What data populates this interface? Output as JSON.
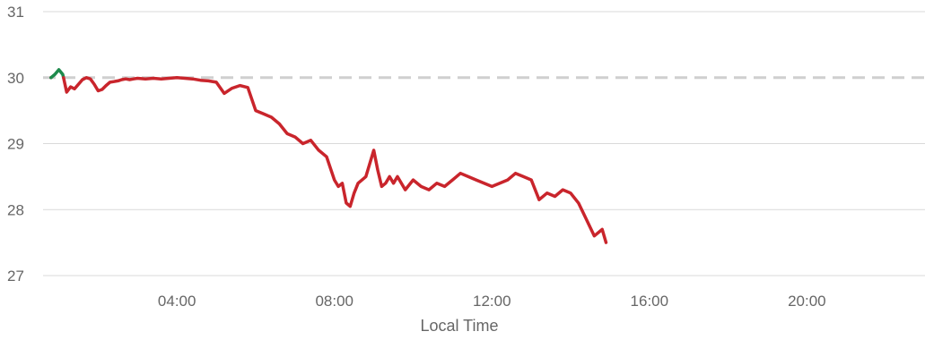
{
  "chart_data": {
    "type": "area",
    "title": "",
    "xlabel": "Local Time",
    "ylabel": "",
    "xlim": [
      0.6,
      23.0
    ],
    "ylim": [
      27,
      31
    ],
    "grid": true,
    "x_ticks": [
      {
        "value": 4,
        "label": "04:00"
      },
      {
        "value": 8,
        "label": "08:00"
      },
      {
        "value": 12,
        "label": "12:00"
      },
      {
        "value": 16,
        "label": "16:00"
      },
      {
        "value": 20,
        "label": "20:00"
      }
    ],
    "y_ticks": [
      {
        "value": 27,
        "label": "27"
      },
      {
        "value": 28,
        "label": "28"
      },
      {
        "value": 29,
        "label": "29"
      },
      {
        "value": 30,
        "label": "30"
      },
      {
        "value": 31,
        "label": "31"
      }
    ],
    "baseline": 30.0,
    "above_color": "#1e8a4c",
    "below_color": "#c9252c",
    "baseline_color": "#cfcfcf",
    "series": [
      {
        "x": [
          0.8,
          0.9,
          1.0,
          1.1,
          1.2,
          1.3,
          1.4,
          1.5,
          1.6,
          1.7,
          1.8,
          1.9,
          2.0,
          2.1,
          2.2,
          2.3,
          2.4,
          2.5,
          2.6,
          2.7,
          2.8,
          2.9,
          3.0,
          3.2,
          3.4,
          3.6,
          3.8,
          4.0,
          4.2,
          4.4,
          4.6,
          4.8,
          5.0,
          5.2,
          5.4,
          5.6,
          5.8,
          6.0,
          6.2,
          6.4,
          6.6,
          6.8,
          7.0,
          7.2,
          7.4,
          7.6,
          7.8,
          8.0,
          8.1,
          8.2,
          8.3,
          8.4,
          8.5,
          8.6,
          8.8,
          9.0,
          9.1,
          9.2,
          9.3,
          9.4,
          9.5,
          9.6,
          9.8,
          10.0,
          10.2,
          10.4,
          10.6,
          10.8,
          11.0,
          11.2,
          11.4,
          11.6,
          11.8,
          12.0,
          12.2,
          12.4,
          12.6,
          12.8,
          13.0,
          13.2,
          13.4,
          13.6,
          13.8,
          14.0,
          14.2,
          14.4,
          14.6,
          14.8,
          14.9
        ],
        "values": [
          30.0,
          30.05,
          30.12,
          30.05,
          29.78,
          29.86,
          29.83,
          29.9,
          29.97,
          30.0,
          29.98,
          29.9,
          29.8,
          29.82,
          29.88,
          29.93,
          29.94,
          29.95,
          29.97,
          29.98,
          29.97,
          29.98,
          29.99,
          29.98,
          29.99,
          29.98,
          29.99,
          30.0,
          29.99,
          29.98,
          29.96,
          29.95,
          29.93,
          29.76,
          29.84,
          29.88,
          29.85,
          29.5,
          29.45,
          29.4,
          29.3,
          29.15,
          29.1,
          29.0,
          29.05,
          28.9,
          28.8,
          28.45,
          28.35,
          28.4,
          28.1,
          28.05,
          28.25,
          28.4,
          28.5,
          28.9,
          28.6,
          28.35,
          28.4,
          28.5,
          28.4,
          28.5,
          28.3,
          28.45,
          28.35,
          28.3,
          28.4,
          28.35,
          28.45,
          28.55,
          28.5,
          28.45,
          28.4,
          28.35,
          28.4,
          28.45,
          28.55,
          28.5,
          28.45,
          28.15,
          28.25,
          28.2,
          28.3,
          28.25,
          28.1,
          27.85,
          27.6,
          27.7,
          27.5
        ]
      }
    ]
  }
}
